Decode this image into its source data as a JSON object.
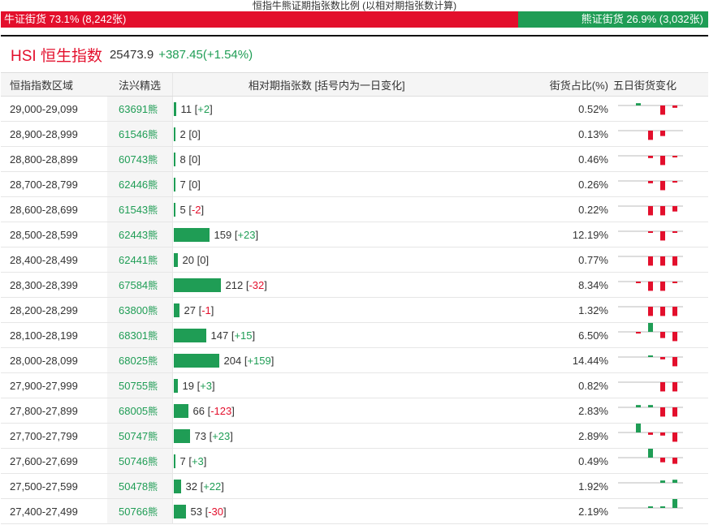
{
  "caption": "恒指牛熊证期指张数比例 (以相对期指张数计算)",
  "ratio": {
    "bull_label": "牛证街货 73.1% (8,242张)",
    "bull_fraction": 0.731,
    "bear_label": "熊证街货 26.9% (3,032张)",
    "bear_fraction": 0.269
  },
  "index": {
    "name": "HSI 恒生指数",
    "value": "25473.9",
    "change": "+387.45(+1.54%)"
  },
  "headers": [
    "恒指指数区域",
    "法兴精选",
    "相对期指张数 [括号内为一日变化]",
    "街货占比(%)",
    "五日街货变化"
  ],
  "colors": {
    "bull": "#e30f2c",
    "bear": "#1f9d55"
  },
  "rows": [
    {
      "range": "29,000-29,099",
      "code": "63691",
      "suffix": "熊",
      "count": 11,
      "change": "+2",
      "pct": "0.52%",
      "spark": [
        0.15,
        0,
        -0.6,
        -0.15,
        0.1
      ]
    },
    {
      "range": "28,900-28,999",
      "code": "61546",
      "suffix": "熊",
      "count": 2,
      "change": "0",
      "pct": "0.13%",
      "spark": [
        0,
        -0.6,
        -0.35,
        0,
        0
      ]
    },
    {
      "range": "28,800-28,899",
      "code": "60743",
      "suffix": "熊",
      "count": 8,
      "change": "0",
      "pct": "0.46%",
      "spark": [
        0,
        -0.15,
        -0.6,
        -0.1,
        0
      ]
    },
    {
      "range": "28,700-28,799",
      "code": "62446",
      "suffix": "熊",
      "count": 7,
      "change": "0",
      "pct": "0.26%",
      "spark": [
        0,
        -0.15,
        -0.6,
        -0.1,
        0
      ]
    },
    {
      "range": "28,600-28,699",
      "code": "61543",
      "suffix": "熊",
      "count": 5,
      "change": "-2",
      "pct": "0.22%",
      "spark": [
        0,
        -0.6,
        -0.6,
        -0.35,
        -0.15
      ]
    },
    {
      "range": "28,500-28,599",
      "code": "62443",
      "suffix": "熊",
      "count": 159,
      "change": "+23",
      "pct": "12.19%",
      "spark": [
        0,
        -0.1,
        -0.6,
        -0.1,
        0.1
      ]
    },
    {
      "range": "28,400-28,499",
      "code": "62441",
      "suffix": "熊",
      "count": 20,
      "change": "0",
      "pct": "0.77%",
      "spark": [
        0,
        -0.6,
        -0.6,
        -0.6,
        0
      ]
    },
    {
      "range": "28,300-28,399",
      "code": "67584",
      "suffix": "熊",
      "count": 212,
      "change": "-32",
      "pct": "8.34%",
      "spark": [
        -0.1,
        -0.6,
        -0.6,
        -0.1,
        -0.1
      ]
    },
    {
      "range": "28,200-28,299",
      "code": "63800",
      "suffix": "熊",
      "count": 27,
      "change": "-1",
      "pct": "1.32%",
      "spark": [
        0,
        -0.6,
        -0.6,
        -0.6,
        -0.15
      ]
    },
    {
      "range": "28,100-28,199",
      "code": "68301",
      "suffix": "熊",
      "count": 147,
      "change": "+15",
      "pct": "6.50%",
      "spark": [
        -0.1,
        0.6,
        -0.4,
        -0.6,
        0.25
      ]
    },
    {
      "range": "28,000-28,099",
      "code": "68025",
      "suffix": "熊",
      "count": 204,
      "change": "+159",
      "pct": "14.44%",
      "spark": [
        0,
        0.1,
        -0.15,
        -0.6,
        0.6
      ]
    },
    {
      "range": "27,900-27,999",
      "code": "50755",
      "suffix": "熊",
      "count": 19,
      "change": "+3",
      "pct": "0.82%",
      "spark": [
        0,
        0,
        -0.6,
        -0.6,
        0.1
      ]
    },
    {
      "range": "27,800-27,899",
      "code": "68005",
      "suffix": "熊",
      "count": 66,
      "change": "-123",
      "pct": "2.83%",
      "spark": [
        0.15,
        0.15,
        -0.6,
        -0.6,
        -0.15
      ]
    },
    {
      "range": "27,700-27,799",
      "code": "50747",
      "suffix": "熊",
      "count": 73,
      "change": "+23",
      "pct": "2.89%",
      "spark": [
        0.6,
        -0.15,
        -0.2,
        -0.6,
        0.2
      ]
    },
    {
      "range": "27,600-27,699",
      "code": "50746",
      "suffix": "熊",
      "count": 7,
      "change": "+3",
      "pct": "0.49%",
      "spark": [
        0,
        0.6,
        -0.3,
        -0.4,
        0.6
      ]
    },
    {
      "range": "27,500-27,599",
      "code": "50478",
      "suffix": "熊",
      "count": 32,
      "change": "+22",
      "pct": "1.92%",
      "spark": [
        0,
        0,
        0.15,
        0.2,
        0.6
      ]
    },
    {
      "range": "27,400-27,499",
      "code": "50766",
      "suffix": "熊",
      "count": 53,
      "change": "-30",
      "pct": "2.19%",
      "spark": [
        0,
        0.1,
        0.1,
        0.6,
        -0.25
      ]
    }
  ]
}
